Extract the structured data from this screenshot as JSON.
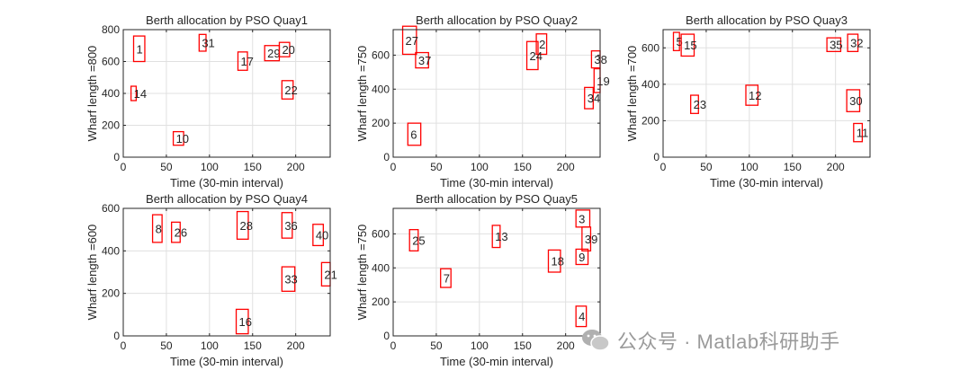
{
  "figure": {
    "background": "#ffffff",
    "box_color": "#ff0000",
    "grid_color": "#e0e0e0",
    "axis_color": "#262626"
  },
  "chart_data": [
    {
      "type": "rectangle-annotation",
      "title": "Berth allocation by PSO Quay1",
      "xlabel": "Time (30-min interval)",
      "ylabel": "Wharf length =800",
      "xlim": [
        0,
        240
      ],
      "ylim": [
        0,
        800
      ],
      "xticks": [
        0,
        50,
        100,
        150,
        200
      ],
      "yticks": [
        0,
        200,
        400,
        600,
        800
      ],
      "boxes": [
        {
          "label": "1",
          "x0": 12,
          "x1": 25,
          "y0": 600,
          "y1": 760
        },
        {
          "label": "31",
          "x0": 88,
          "x1": 96,
          "y0": 665,
          "y1": 770
        },
        {
          "label": "17",
          "x0": 133,
          "x1": 144,
          "y0": 545,
          "y1": 660
        },
        {
          "label": "29",
          "x0": 164,
          "x1": 181,
          "y0": 605,
          "y1": 700
        },
        {
          "label": "20",
          "x0": 181,
          "x1": 193,
          "y0": 630,
          "y1": 720
        },
        {
          "label": "14",
          "x0": 9,
          "x1": 15,
          "y0": 355,
          "y1": 445
        },
        {
          "label": "22",
          "x0": 184,
          "x1": 197,
          "y0": 365,
          "y1": 480
        },
        {
          "label": "10",
          "x0": 58,
          "x1": 70,
          "y0": 75,
          "y1": 160
        }
      ]
    },
    {
      "type": "rectangle-annotation",
      "title": "Berth allocation by PSO Quay2",
      "xlabel": "Time (30-min interval)",
      "ylabel": "Wharf length =750",
      "xlim": [
        0,
        240
      ],
      "ylim": [
        0,
        750
      ],
      "xticks": [
        0,
        50,
        100,
        150,
        200
      ],
      "yticks": [
        0,
        200,
        400,
        600
      ],
      "boxes": [
        {
          "label": "27",
          "x0": 11,
          "x1": 27,
          "y0": 605,
          "y1": 770
        },
        {
          "label": "37",
          "x0": 26,
          "x1": 41,
          "y0": 525,
          "y1": 615
        },
        {
          "label": "2",
          "x0": 166,
          "x1": 178,
          "y0": 605,
          "y1": 725
        },
        {
          "label": "24",
          "x0": 155,
          "x1": 168,
          "y0": 515,
          "y1": 680
        },
        {
          "label": "38",
          "x0": 230,
          "x1": 240,
          "y0": 525,
          "y1": 625
        },
        {
          "label": "19",
          "x0": 233,
          "x1": 240,
          "y0": 380,
          "y1": 520
        },
        {
          "label": "34",
          "x0": 222,
          "x1": 232,
          "y0": 285,
          "y1": 410
        },
        {
          "label": "6",
          "x0": 17,
          "x1": 32,
          "y0": 70,
          "y1": 200
        }
      ]
    },
    {
      "type": "rectangle-annotation",
      "title": "Berth allocation by PSO Quay3",
      "xlabel": "Time (30-min interval)",
      "ylabel": "Wharf length =700",
      "xlim": [
        0,
        240
      ],
      "ylim": [
        0,
        700
      ],
      "xticks": [
        0,
        50,
        100,
        150,
        200
      ],
      "yticks": [
        0,
        200,
        400,
        600
      ],
      "boxes": [
        {
          "label": "5",
          "x0": 12,
          "x1": 19,
          "y0": 585,
          "y1": 685
        },
        {
          "label": "15",
          "x0": 21,
          "x1": 36,
          "y0": 555,
          "y1": 675
        },
        {
          "label": "35",
          "x0": 190,
          "x1": 206,
          "y0": 580,
          "y1": 655
        },
        {
          "label": "32",
          "x0": 214,
          "x1": 226,
          "y0": 580,
          "y1": 675
        },
        {
          "label": "12",
          "x0": 96,
          "x1": 110,
          "y0": 285,
          "y1": 395
        },
        {
          "label": "30",
          "x0": 213,
          "x1": 228,
          "y0": 250,
          "y1": 370
        },
        {
          "label": "23",
          "x0": 32,
          "x1": 41,
          "y0": 240,
          "y1": 340
        },
        {
          "label": "11",
          "x0": 221,
          "x1": 231,
          "y0": 85,
          "y1": 185
        }
      ]
    },
    {
      "type": "rectangle-annotation",
      "title": "Berth allocation by PSO Quay4",
      "xlabel": "Time (30-min interval)",
      "ylabel": "Wharf length =600",
      "xlim": [
        0,
        240
      ],
      "ylim": [
        0,
        600
      ],
      "xticks": [
        0,
        50,
        100,
        150,
        200
      ],
      "yticks": [
        0,
        200,
        400,
        600
      ],
      "boxes": [
        {
          "label": "8",
          "x0": 34,
          "x1": 45,
          "y0": 440,
          "y1": 570
        },
        {
          "label": "26",
          "x0": 56,
          "x1": 66,
          "y0": 440,
          "y1": 535
        },
        {
          "label": "28",
          "x0": 132,
          "x1": 145,
          "y0": 455,
          "y1": 585
        },
        {
          "label": "36",
          "x0": 184,
          "x1": 196,
          "y0": 460,
          "y1": 580
        },
        {
          "label": "40",
          "x0": 220,
          "x1": 232,
          "y0": 425,
          "y1": 525
        },
        {
          "label": "21",
          "x0": 230,
          "x1": 240,
          "y0": 235,
          "y1": 345
        },
        {
          "label": "33",
          "x0": 184,
          "x1": 199,
          "y0": 210,
          "y1": 325
        },
        {
          "label": "16",
          "x0": 131,
          "x1": 145,
          "y0": 10,
          "y1": 125
        }
      ]
    },
    {
      "type": "rectangle-annotation",
      "title": "Berth allocation by PSO Quay5",
      "xlabel": "Time (30-min interval)",
      "ylabel": "Wharf length =750",
      "xlim": [
        0,
        240
      ],
      "ylim": [
        0,
        750
      ],
      "xticks": [
        0,
        50,
        100,
        150,
        200
      ],
      "yticks": [
        0,
        200,
        400,
        600
      ],
      "boxes": [
        {
          "label": "25",
          "x0": 19,
          "x1": 29,
          "y0": 500,
          "y1": 625
        },
        {
          "label": "13",
          "x0": 115,
          "x1": 124,
          "y0": 520,
          "y1": 650
        },
        {
          "label": "3",
          "x0": 212,
          "x1": 228,
          "y0": 640,
          "y1": 740
        },
        {
          "label": "39",
          "x0": 219,
          "x1": 229,
          "y0": 500,
          "y1": 640
        },
        {
          "label": "18",
          "x0": 180,
          "x1": 194,
          "y0": 375,
          "y1": 505
        },
        {
          "label": "9",
          "x0": 212,
          "x1": 226,
          "y0": 420,
          "y1": 510
        },
        {
          "label": "7",
          "x0": 55,
          "x1": 67,
          "y0": 285,
          "y1": 395
        },
        {
          "label": "4",
          "x0": 212,
          "x1": 224,
          "y0": 55,
          "y1": 175
        }
      ]
    }
  ],
  "watermark": {
    "text": "公众号 · Matlab科研助手",
    "icon": "wechat-icon"
  }
}
